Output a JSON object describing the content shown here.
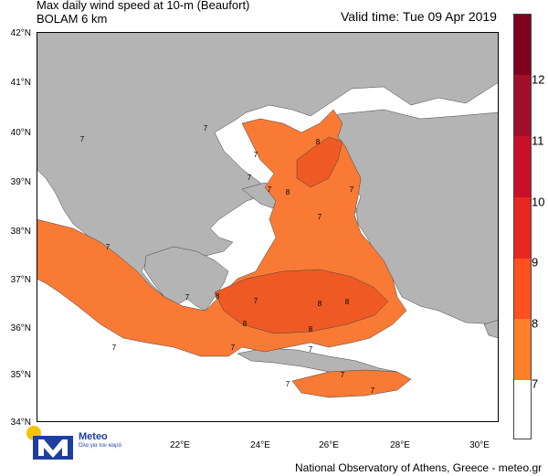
{
  "title": {
    "line1": "Max daily wind speed at 10-m (Beaufort)",
    "line2": "BOLAM 6 km"
  },
  "valid_time": "Valid time: Tue 09 Apr 2019",
  "latitude_labels": [
    "42°N",
    "41°N",
    "40°N",
    "39°N",
    "38°N",
    "37°N",
    "36°N",
    "35°N",
    "34°N"
  ],
  "longitude_labels": [
    "22°E",
    "24°E",
    "26°E",
    "28°E",
    "30°E"
  ],
  "colorbar": {
    "labels": [
      "12",
      "11",
      "10",
      "9",
      "8",
      "7"
    ],
    "colors": [
      "#ffffff",
      "#ff7f2a",
      "#ff5020",
      "#e8281e",
      "#c8102a",
      "#a0102a",
      "#800020"
    ]
  },
  "contour_labels": [
    "7",
    "7",
    "7",
    "7",
    "7",
    "7",
    "7",
    "7",
    "7",
    "7",
    "7",
    "7",
    "7",
    "7",
    "7",
    "7",
    "8",
    "8",
    "8",
    "8",
    "8",
    "8",
    "8"
  ],
  "colors": {
    "land": "#b4b4b4",
    "sea": "#ffffff",
    "beaufort7": "#f97a35",
    "beaufort8": "#ef5a24"
  },
  "logo": {
    "name": "Meteo",
    "subtitle": "Όλα για τον καιρό"
  },
  "credit": "National Observatory of Athens, Greece - meteo.gr"
}
